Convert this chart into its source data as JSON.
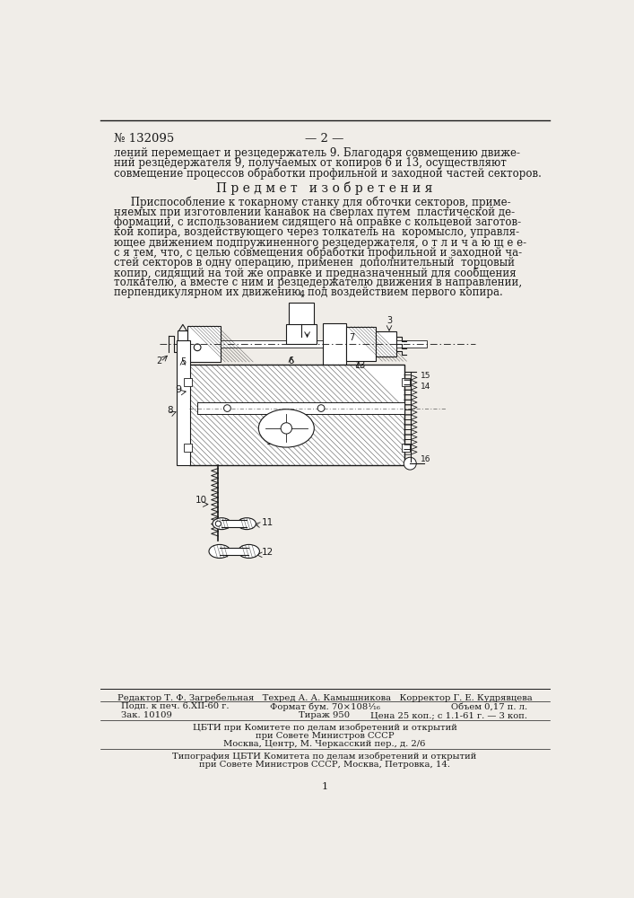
{
  "page_number": "№ 132095",
  "page_num_center": "— 2 —",
  "bg_color": "#f0ede8",
  "text_color": "#1a1a1a",
  "top_text_lines": [
    "лений перемещает и резцедержатель 9. Благодаря совмещению движе-",
    "ний резцедержателя 9, получаемых от копиров 6 и 13, осуществляют",
    "совмещение процессов обработки профильной и заходной частей секторов."
  ],
  "section_title": "П р е д м е т   и з о б р е т е н и я",
  "body_text_lines": [
    "     Приспособление к токарному станку для обточки секторов, приме-",
    "няемых при изготовлении канавок на сверлах путем  пластической де-",
    "формации, с использованием сидящего на оправке с кольцевой заготов-",
    "кой копира, воздействующего через толкатель на  коромысло, управля-",
    "ющее движением подпружиненного резцедержателя, о т л и ч а ю щ е е-",
    "с я тем, что, с целью совмещения обработки профильной и заходной ча-",
    "стей секторов в одну операцию, применен  дополнительный  торцовый",
    "копир, сидящий на той же оправке и предназначенный для сообщения",
    "толкателю, а вместе с ним и резцедержателю движения в направлении,",
    "перпендикулярном их движению, под воздействием первого копира."
  ],
  "footer_line1": "Редактор Т. Ф. Загребельная   Техред А. А. Камышникова   Корректор Г. Е. Кудрявцева",
  "footer_line2a": "Подп. к печ. 6.XII-60 г.",
  "footer_line2b": "Формат бум. 70×108¹⁄₁₆",
  "footer_line2c": "Объем 0,17 п. л.",
  "footer_line3a": "Зак. 10109",
  "footer_line3b": "Тираж 950",
  "footer_line3c": "Цена 25 коп.; с 1.1-61 г. — 3 коп.",
  "footer_line4": "ЦБТИ при Комитете по делам изобретений и открытий",
  "footer_line5": "при Совете Министров СССР",
  "footer_line6": "Москва, Центр, М. Черкасский пер., д. 2/6",
  "footer_line7": "Типография ЦБТИ Комитета по делам изобретений и открытий",
  "footer_line8": "при Совете Министров СССР, Москва, Петровка, 14.",
  "page_bottom_num": "1"
}
